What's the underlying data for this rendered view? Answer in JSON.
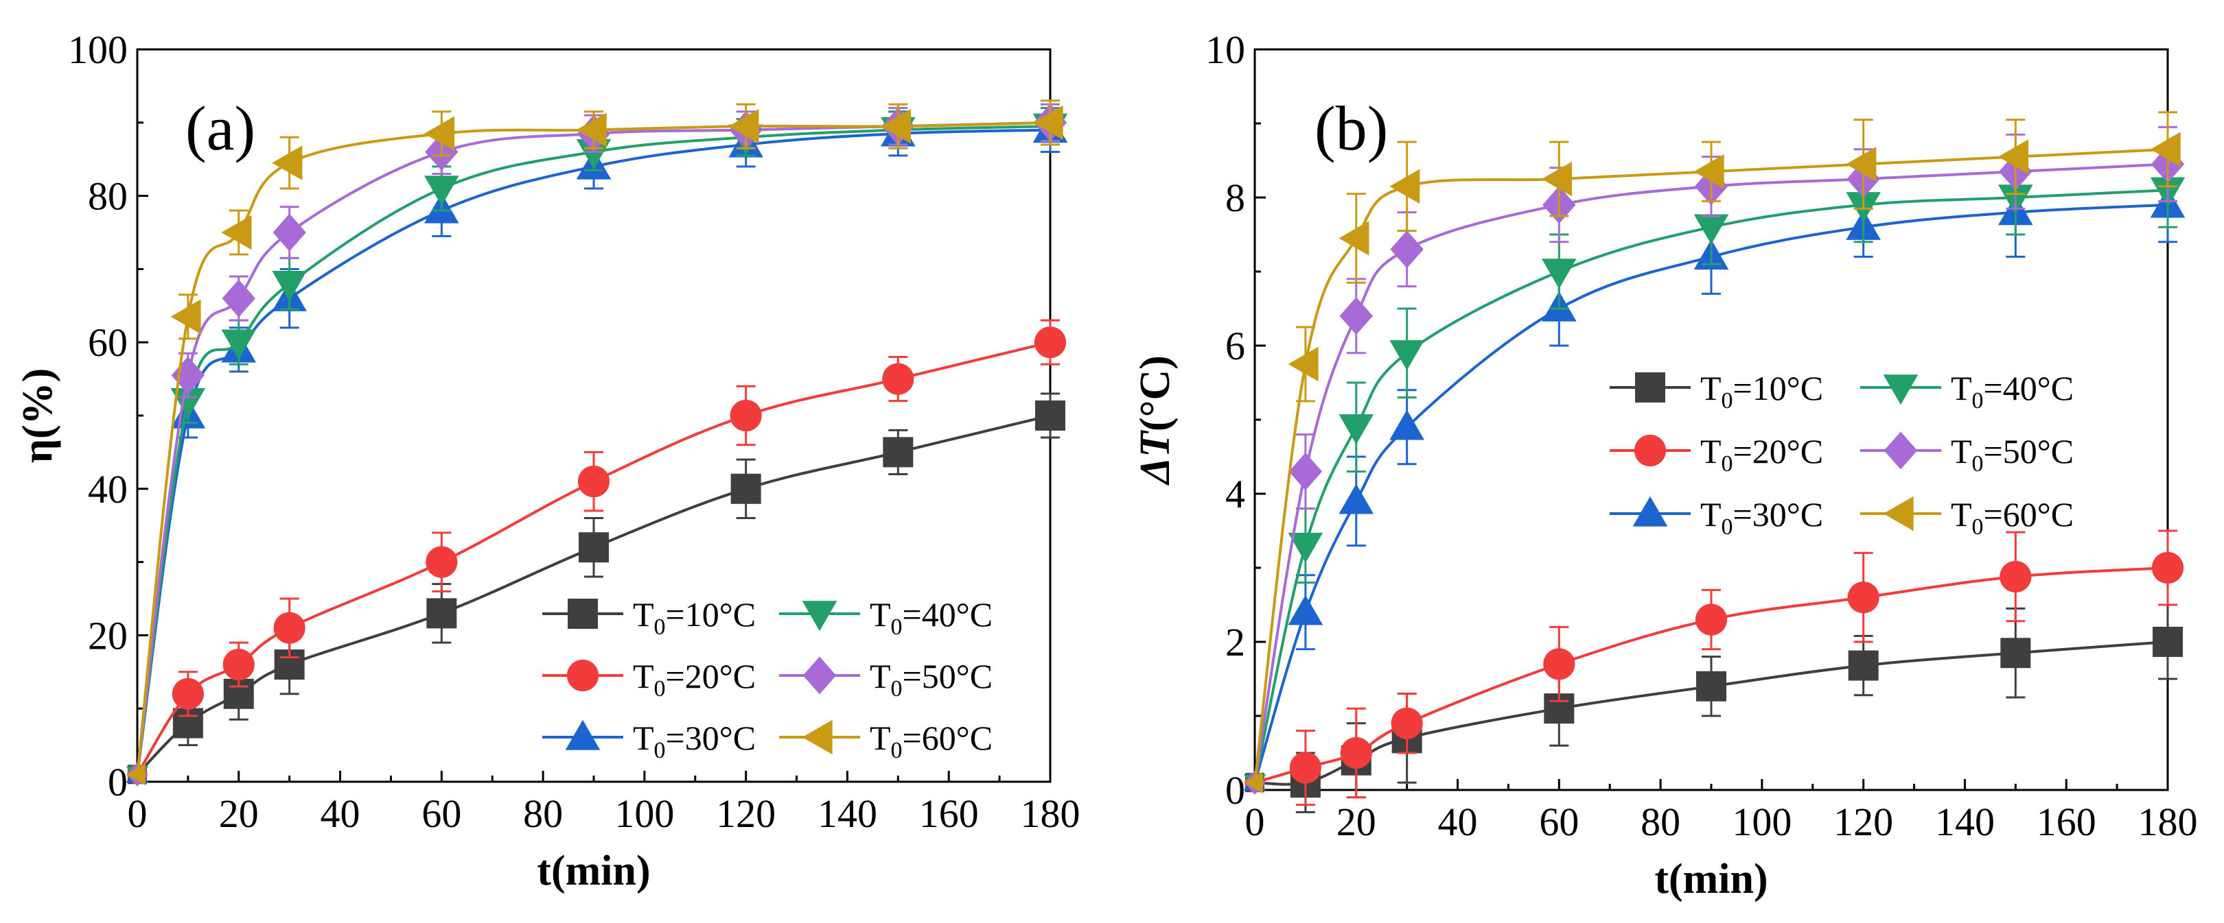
{
  "chart_data": [
    {
      "type": "line",
      "panel_label": "(a)",
      "xlabel": "t(min)",
      "ylabel": "η(%)",
      "xlim": [
        0,
        180
      ],
      "ylim": [
        0,
        100
      ],
      "xticks": [
        0,
        20,
        40,
        60,
        80,
        100,
        120,
        140,
        160,
        180
      ],
      "yticks": [
        0,
        20,
        40,
        60,
        80,
        100
      ],
      "legend_position": "bottom-right",
      "legend_columns": 2,
      "x": [
        0,
        10,
        20,
        30,
        60,
        90,
        120,
        150,
        180
      ],
      "series": [
        {
          "name_base": "T",
          "name_sub": "0",
          "name_rest": "=10°C",
          "color": "#3f3f3f",
          "marker": "square",
          "values": [
            1,
            8,
            12,
            16,
            23,
            32,
            40,
            45,
            50
          ],
          "errors": [
            0,
            3,
            3.5,
            4,
            4,
            4,
            4,
            3,
            3
          ]
        },
        {
          "name_base": "T",
          "name_sub": "0",
          "name_rest": "=20°C",
          "color": "#f23b3b",
          "marker": "circle",
          "values": [
            1,
            12,
            16,
            21,
            30,
            41,
            50,
            55,
            60
          ],
          "errors": [
            0,
            3,
            3,
            4,
            4,
            4,
            4,
            3,
            3
          ]
        },
        {
          "name_base": "T",
          "name_sub": "0",
          "name_rest": "=30°C",
          "color": "#1c65d0",
          "marker": "triangle-up",
          "values": [
            1,
            50,
            59,
            66,
            78,
            84,
            87,
            88.5,
            89
          ],
          "errors": [
            0,
            3,
            3,
            4,
            3.5,
            3,
            3,
            3,
            3
          ]
        },
        {
          "name_base": "T",
          "name_sub": "0",
          "name_rest": "=40°C",
          "color": "#23a06a",
          "marker": "triangle-down",
          "values": [
            1,
            52,
            60,
            68,
            81,
            86,
            88,
            89,
            89.5
          ],
          "errors": [
            0,
            3,
            3,
            3.5,
            3,
            2.5,
            2.5,
            2.5,
            2.5
          ]
        },
        {
          "name_base": "T",
          "name_sub": "0",
          "name_rest": "=50°C",
          "color": "#a86ad6",
          "marker": "diamond",
          "values": [
            1,
            55.5,
            66,
            75,
            86,
            88.5,
            89,
            89.5,
            90
          ],
          "errors": [
            0,
            3,
            3,
            3.5,
            3,
            2.5,
            2.5,
            2.5,
            2.5
          ]
        },
        {
          "name_base": "T",
          "name_sub": "0",
          "name_rest": "=60°C",
          "color": "#c99a14",
          "marker": "triangle-left",
          "values": [
            1,
            63.5,
            75,
            84.5,
            88.5,
            89,
            89.5,
            89.5,
            90
          ],
          "errors": [
            0,
            3,
            3,
            3.5,
            3,
            2.5,
            3,
            3,
            3
          ]
        }
      ]
    },
    {
      "type": "line",
      "panel_label": "(b)",
      "xlabel": "t(min)",
      "ylabel_italic": "ΔT",
      "ylabel_rest": "(°C)",
      "xlim": [
        0,
        180
      ],
      "ylim": [
        0,
        10
      ],
      "xticks": [
        0,
        20,
        40,
        60,
        80,
        100,
        120,
        140,
        160,
        180
      ],
      "yticks": [
        0,
        2,
        4,
        6,
        8,
        10
      ],
      "legend_position": "middle-right",
      "legend_columns": 2,
      "x": [
        0,
        10,
        20,
        30,
        60,
        90,
        120,
        150,
        180
      ],
      "series": [
        {
          "name_base": "T",
          "name_sub": "0",
          "name_rest": "=10°C",
          "color": "#3f3f3f",
          "marker": "square",
          "values": [
            0.1,
            0.1,
            0.4,
            0.7,
            1.1,
            1.4,
            1.68,
            1.85,
            2.0
          ],
          "errors": [
            0,
            0.4,
            0.5,
            0.6,
            0.5,
            0.4,
            0.4,
            0.6,
            0.5
          ]
        },
        {
          "name_base": "T",
          "name_sub": "0",
          "name_rest": "=20°C",
          "color": "#f23b3b",
          "marker": "circle",
          "values": [
            0.1,
            0.3,
            0.5,
            0.9,
            1.7,
            2.3,
            2.6,
            2.88,
            3.0
          ],
          "errors": [
            0,
            0.5,
            0.6,
            0.4,
            0.5,
            0.4,
            0.6,
            0.6,
            0.5
          ]
        },
        {
          "name_base": "T",
          "name_sub": "0",
          "name_rest": "=30°C",
          "color": "#1c65d0",
          "marker": "triangle-up",
          "values": [
            0.1,
            2.4,
            3.9,
            4.9,
            6.5,
            7.2,
            7.6,
            7.8,
            7.9
          ],
          "errors": [
            0,
            0.5,
            0.6,
            0.5,
            0.5,
            0.5,
            0.4,
            0.6,
            0.5
          ]
        },
        {
          "name_base": "T",
          "name_sub": "0",
          "name_rest": "=40°C",
          "color": "#23a06a",
          "marker": "triangle-down",
          "values": [
            0.1,
            3.3,
            4.9,
            5.9,
            7.0,
            7.6,
            7.9,
            8.0,
            8.1
          ],
          "errors": [
            0,
            0.5,
            0.6,
            0.6,
            0.5,
            0.5,
            0.5,
            0.5,
            0.5
          ]
        },
        {
          "name_base": "T",
          "name_sub": "0",
          "name_rest": "=50°C",
          "color": "#a86ad6",
          "marker": "diamond",
          "values": [
            0.1,
            4.3,
            6.4,
            7.3,
            7.9,
            8.15,
            8.25,
            8.35,
            8.45
          ],
          "errors": [
            0,
            0.5,
            0.5,
            0.5,
            0.5,
            0.4,
            0.4,
            0.5,
            0.5
          ]
        },
        {
          "name_base": "T",
          "name_sub": "0",
          "name_rest": "=60°C",
          "color": "#c99a14",
          "marker": "triangle-left",
          "values": [
            0.1,
            5.75,
            7.45,
            8.15,
            8.25,
            8.35,
            8.45,
            8.55,
            8.65
          ],
          "errors": [
            0,
            0.5,
            0.6,
            0.6,
            0.5,
            0.4,
            0.6,
            0.5,
            0.5
          ]
        }
      ]
    }
  ]
}
